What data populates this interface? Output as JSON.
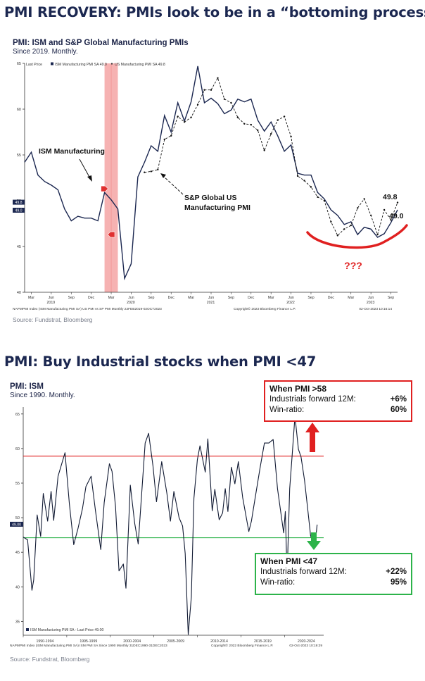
{
  "headline1": "PMI RECOVERY: PMIs look to be in a “bottoming process”",
  "headline2": "PMI: Buy Industrial stocks when PMI <47",
  "colors": {
    "navy": "#1b2750",
    "red": "#e02020",
    "green": "#2db34a",
    "shade": "#f4a5a5"
  },
  "chart_data": [
    {
      "type": "line",
      "title": "PMI: ISM and S&P Global Manufacturing PMIs",
      "subtitle": "Since 2019. Monthly.",
      "legend": {
        "placement": "top-left",
        "prefix": "Last Price",
        "entries": [
          "ISM Manufacturing PMI SA 49.0",
          "US Manufacturing PMI SA 49.8"
        ]
      },
      "ylim": [
        40,
        65
      ],
      "yticks": [
        40,
        45,
        50,
        55,
        60,
        65
      ],
      "ytick_labels": [
        "40",
        "45",
        "50",
        "55",
        "60",
        "65"
      ],
      "x_tick_labels": [
        "Mar",
        "Jun",
        "Sep",
        "Dec",
        "Mar",
        "Jun",
        "Sep",
        "Dec",
        "Mar",
        "Jun",
        "Sep",
        "Dec",
        "Mar",
        "Jun",
        "Sep",
        "Dec",
        "Mar",
        "Jun",
        "Sep"
      ],
      "x_year_labels": [
        "2019",
        "2020",
        "2021",
        "2022",
        "2023"
      ],
      "x_range": [
        "2019-02",
        "2023-10"
      ],
      "series": [
        {
          "name": "ISM Manufacturing",
          "style": "solid",
          "start": "2019-02",
          "values": [
            54.2,
            55.3,
            52.8,
            52.1,
            51.7,
            51.2,
            49.1,
            47.8,
            48.3,
            48.1,
            48.1,
            47.8,
            50.9,
            50.1,
            49.1,
            41.5,
            43.1,
            52.6,
            54.2,
            56.0,
            55.4,
            59.3,
            57.5,
            60.7,
            58.7,
            60.8,
            64.7,
            60.7,
            61.2,
            60.6,
            59.5,
            59.9,
            61.1,
            60.8,
            61.1,
            58.8,
            57.6,
            58.6,
            57.1,
            55.4,
            56.1,
            53.0,
            52.8,
            52.8,
            50.9,
            50.2,
            49.0,
            48.4,
            47.4,
            47.7,
            46.3,
            47.1,
            46.9,
            46.0,
            46.4,
            47.6,
            49.0
          ]
        },
        {
          "name": "S&P Global US Manufacturing PMI",
          "style": "dashed",
          "start": "2020-08",
          "values": [
            53.1,
            53.2,
            53.4,
            56.7,
            57.1,
            59.2,
            58.6,
            59.1,
            60.5,
            62.1,
            62.1,
            63.4,
            61.1,
            60.7,
            59.1,
            58.4,
            58.3,
            57.7,
            55.5,
            57.3,
            58.8,
            59.2,
            57.0,
            52.7,
            52.2,
            51.5,
            50.4,
            50.0,
            47.7,
            46.2,
            46.9,
            47.3,
            49.2,
            50.2,
            48.4,
            46.3,
            49.0,
            47.9,
            49.8
          ]
        }
      ],
      "events": [
        {
          "type": "shaded_band",
          "start": "2020-02",
          "end": "2020-04"
        },
        {
          "type": "arrow_marker",
          "date": "2020-02",
          "value": 51.3,
          "direction": "right"
        },
        {
          "type": "arrow_marker",
          "date": "2020-03",
          "value": 46.3,
          "direction": "left"
        }
      ],
      "axis_value_labels": [
        "49.8",
        "49.0"
      ],
      "annotations": {
        "ism_label": "ISM Manufacturing",
        "spg_label": [
          "S&P Global US",
          "Manufacturing PMI"
        ],
        "end_label_spg": "49.8",
        "end_label_ism": "49.0",
        "question": "???"
      },
      "footnote_left": "NAPMPMI Index (ISM Manufacturing PMI SA) US PMI vs SP PMI  Monthly 22FEB2019-02OCT2023",
      "footnote_mid": "Copyright© 2023 Bloomberg Finance L.P.",
      "footnote_right": "02-Oct-2023 10:16:14"
    },
    {
      "type": "line",
      "title": "PMI: ISM",
      "subtitle": "Since 1990. Monthly.",
      "legend": {
        "placement": "bottom-left",
        "entries": [
          "ISM Manufacturing PMI SA - Last Price 49.00"
        ]
      },
      "ylim": [
        33,
        66
      ],
      "yticks": [
        35,
        40,
        45,
        50,
        55,
        60,
        65
      ],
      "ytick_labels": [
        "35",
        "40",
        "45",
        "50",
        "55",
        "60",
        "65"
      ],
      "x_range": [
        1990,
        2024.5
      ],
      "x_tick_labels": [
        "1990-1994",
        "1995-1999",
        "2000-2004",
        "2005-2009",
        "2010-2014",
        "2015-2019",
        "2020-2024"
      ],
      "axis_value_label": "49.00",
      "thresholds": [
        {
          "value": 58.9,
          "color": "red"
        },
        {
          "value": 47.1,
          "color": "green"
        }
      ],
      "series": [
        {
          "name": "ISM Manufacturing PMI SA",
          "points": [
            [
              1990.0,
              47.2
            ],
            [
              1990.5,
              46.8
            ],
            [
              1991.0,
              39.5
            ],
            [
              1991.2,
              41.0
            ],
            [
              1991.6,
              50.4
            ],
            [
              1992.0,
              47.3
            ],
            [
              1992.3,
              53.5
            ],
            [
              1992.8,
              49.5
            ],
            [
              1993.2,
              53.8
            ],
            [
              1993.5,
              49.6
            ],
            [
              1994.0,
              56.0
            ],
            [
              1994.8,
              59.4
            ],
            [
              1995.3,
              52.0
            ],
            [
              1995.8,
              46.1
            ],
            [
              1996.3,
              48.5
            ],
            [
              1996.8,
              51.3
            ],
            [
              1997.2,
              54.5
            ],
            [
              1997.8,
              56.0
            ],
            [
              1998.3,
              51.0
            ],
            [
              1998.9,
              45.4
            ],
            [
              1999.3,
              52.2
            ],
            [
              1999.9,
              57.8
            ],
            [
              2000.2,
              56.7
            ],
            [
              2000.6,
              51.6
            ],
            [
              2001.0,
              42.3
            ],
            [
              2001.5,
              43.3
            ],
            [
              2001.8,
              39.8
            ],
            [
              2002.3,
              54.7
            ],
            [
              2002.8,
              49.2
            ],
            [
              2003.2,
              46.2
            ],
            [
              2003.6,
              53.4
            ],
            [
              2004.0,
              60.8
            ],
            [
              2004.4,
              62.2
            ],
            [
              2004.9,
              57.5
            ],
            [
              2005.3,
              52.3
            ],
            [
              2005.9,
              58.1
            ],
            [
              2006.5,
              53.5
            ],
            [
              2006.9,
              49.5
            ],
            [
              2007.3,
              53.8
            ],
            [
              2007.9,
              50.0
            ],
            [
              2008.3,
              48.8
            ],
            [
              2008.6,
              44.8
            ],
            [
              2008.95,
              33.1
            ],
            [
              2009.3,
              38.5
            ],
            [
              2009.6,
              52.8
            ],
            [
              2010.0,
              58.4
            ],
            [
              2010.3,
              60.4
            ],
            [
              2010.9,
              56.6
            ],
            [
              2011.2,
              61.4
            ],
            [
              2011.7,
              51.0
            ],
            [
              2012.0,
              54.1
            ],
            [
              2012.5,
              49.7
            ],
            [
              2012.9,
              50.7
            ],
            [
              2013.2,
              54.2
            ],
            [
              2013.5,
              50.9
            ],
            [
              2013.9,
              57.3
            ],
            [
              2014.3,
              54.9
            ],
            [
              2014.7,
              58.1
            ],
            [
              2015.2,
              52.9
            ],
            [
              2015.9,
              48.0
            ],
            [
              2016.2,
              49.5
            ],
            [
              2016.6,
              52.6
            ],
            [
              2017.2,
              57.2
            ],
            [
              2017.7,
              60.8
            ],
            [
              2018.2,
              60.8
            ],
            [
              2018.7,
              61.3
            ],
            [
              2019.2,
              54.2
            ],
            [
              2019.9,
              47.8
            ],
            [
              2020.1,
              50.9
            ],
            [
              2020.3,
              41.5
            ],
            [
              2020.6,
              54.2
            ],
            [
              2020.9,
              59.3
            ],
            [
              2021.2,
              64.7
            ],
            [
              2021.6,
              59.9
            ],
            [
              2021.9,
              58.8
            ],
            [
              2022.3,
              55.4
            ],
            [
              2022.7,
              50.9
            ],
            [
              2023.0,
              47.4
            ],
            [
              2023.3,
              46.3
            ],
            [
              2023.5,
              46.0
            ],
            [
              2023.75,
              49.0
            ]
          ]
        }
      ],
      "callouts": [
        {
          "title": "When PMI >58",
          "rows": [
            {
              "label": "Industrials forward 12M:",
              "value": "+6%"
            },
            {
              "label": "Win-ratio:",
              "value": "60%"
            }
          ],
          "color": "red"
        },
        {
          "title": "When PMI <47",
          "rows": [
            {
              "label": "Industrials forward 12M:",
              "value": "+22%"
            },
            {
              "label": "Win-ratio:",
              "value": "95%"
            }
          ],
          "color": "green"
        }
      ],
      "footnote_left": "NAPMPMI Index (ISM Manufacturing PMI SA) ISM PMI SA Since 1990  Monthly 31DEC1990-31DEC2023",
      "footnote_mid": "Copyright© 2022 Bloomberg Finance L.P.",
      "footnote_right": "02-Oct-2023 10:19:29"
    }
  ],
  "sources": [
    "Source: Fundstrat, Bloomberg",
    "Source: Fundstrat, Bloomberg"
  ]
}
